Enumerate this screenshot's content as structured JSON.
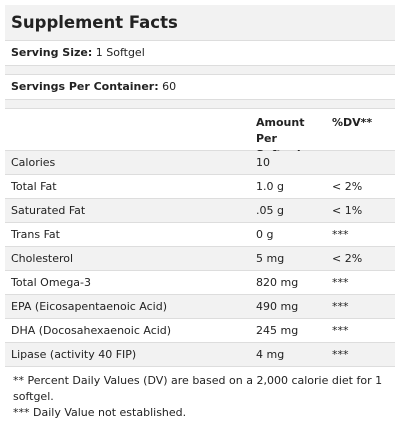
{
  "title": "Supplement Facts",
  "serving_size": {
    "label": "Serving Size:",
    "value": "1 Softgel"
  },
  "servings_per_container": {
    "label": "Servings Per Container:",
    "value": "60"
  },
  "table": {
    "headers": {
      "amount_line1": "Amount Per",
      "amount_line2": "Softgel",
      "dv": "%DV**"
    },
    "rows": [
      {
        "name": "Calories",
        "amount": "10",
        "dv": ""
      },
      {
        "name": "Total Fat",
        "amount": "1.0 g",
        "dv": "< 2%"
      },
      {
        "name": "Saturated Fat",
        "amount": ".05 g",
        "dv": "< 1%"
      },
      {
        "name": "Trans Fat",
        "amount": "0 g",
        "dv": "***"
      },
      {
        "name": "Cholesterol",
        "amount": "5 mg",
        "dv": "< 2%"
      },
      {
        "name": "Total Omega-3",
        "amount": "820 mg",
        "dv": "***"
      },
      {
        "name": "EPA (Eicosapentaenoic Acid)",
        "amount": "490 mg",
        "dv": "***"
      },
      {
        "name": "DHA (Docosahexaenoic Acid)",
        "amount": "245 mg",
        "dv": "***"
      },
      {
        "name": "Lipase (activity 40 FIP)",
        "amount": "4 mg",
        "dv": "***"
      }
    ]
  },
  "footnotes": [
    "** Percent Daily Values (DV) are based on a 2,000 calorie diet for 1 softgel.",
    "*** Daily Value not established."
  ],
  "colors": {
    "stripe": "#f2f2f2",
    "border": "#dddddd",
    "text": "#222222"
  }
}
